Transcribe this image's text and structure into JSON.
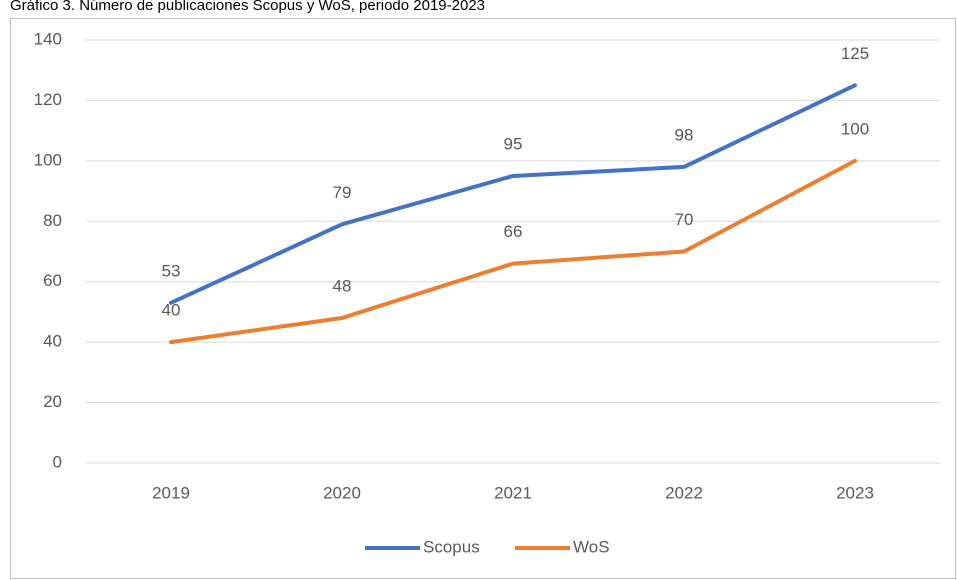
{
  "chart_data": {
    "type": "line",
    "title": "Gráfico 3. Número de publicaciones Scopus y WoS, periodo 2019-2023",
    "categories": [
      "2019",
      "2020",
      "2021",
      "2022",
      "2023"
    ],
    "series": [
      {
        "name": "Scopus",
        "color": "#4472c4",
        "values": [
          53,
          79,
          95,
          98,
          125
        ]
      },
      {
        "name": "WoS",
        "color": "#ed7d31",
        "values": [
          40,
          48,
          66,
          70,
          100
        ]
      }
    ],
    "ylim": [
      0,
      140
    ],
    "yticks": [
      0,
      20,
      40,
      60,
      80,
      100,
      120,
      140
    ],
    "grid": true,
    "legend": "bottom"
  }
}
